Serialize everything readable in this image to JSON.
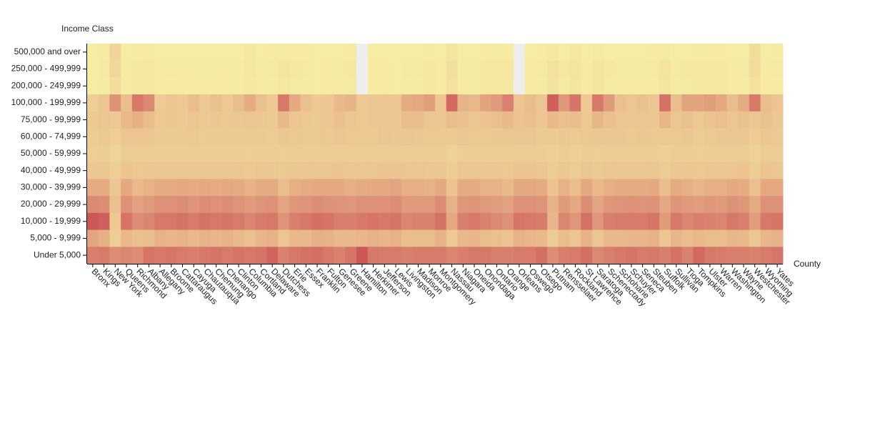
{
  "chart_data": {
    "type": "heatmap",
    "y_label": "Income Class",
    "x_label": "County",
    "x": [
      "Bronx",
      "Kings",
      "New York",
      "Queens",
      "Richmond",
      "Albany",
      "Allegany",
      "Broome",
      "Cattaraugus",
      "Cayuga",
      "Chautauqua",
      "Chemung",
      "Chenango",
      "Clinton",
      "Columbia",
      "Cortland",
      "Delaware",
      "Dutchess",
      "Erie",
      "Essex",
      "Franklin",
      "Fulton",
      "Genesee",
      "Greene",
      "Hamilton",
      "Herkimer",
      "Jefferson",
      "Lewis",
      "Livingston",
      "Madison",
      "Monroe",
      "Montgomery",
      "Nassau",
      "Niagara",
      "Oneida",
      "Onondaga",
      "Ontario",
      "Orange",
      "Orleans",
      "Oswego",
      "Otsego",
      "Putnam",
      "Rensselaer",
      "Rockland",
      "St Lawrence",
      "Saratoga",
      "Schenectady",
      "Schoharie",
      "Schuyler",
      "Seneca",
      "Steuben",
      "Suffolk",
      "Sullivan",
      "Tioga",
      "Tompkins",
      "Ulster",
      "Warren",
      "Washington",
      "Wayne",
      "Westchester",
      "Wyoming",
      "Yates"
    ],
    "y": [
      "500,000 and over",
      "250,000 - 499,999",
      "200,000 - 249,999",
      "100,000 - 199,999",
      "75,000 - 99,999",
      "60,000 - 74,999",
      "50,000 - 59,999",
      "40,000 - 49,999",
      "30,000 - 39,999",
      "20,000 - 29,999",
      "10,000 - 19,999",
      "5,000 - 9,999",
      "Under 5,000"
    ],
    "colors": [
      "#f6eda2",
      "#ecc592",
      "#cd5757"
    ],
    "color_lim": [
      0,
      13
    ],
    "missing_color": "#eeeeee",
    "values": [
      [
        0.1,
        0.3,
        4.0,
        0.2,
        0.3,
        0.4,
        0.2,
        0.2,
        0.2,
        0.2,
        0.2,
        0.2,
        0.2,
        0.2,
        0.6,
        0.2,
        0.3,
        0.5,
        0.3,
        0.3,
        0.1,
        0.2,
        0.2,
        0.3,
        null,
        0.2,
        0.2,
        0.1,
        0.2,
        0.2,
        0.4,
        0.2,
        1.3,
        0.2,
        0.2,
        0.3,
        0.4,
        0.3,
        null,
        0.1,
        0.3,
        0.7,
        0.2,
        0.6,
        0.1,
        0.5,
        0.2,
        0.2,
        0.2,
        0.2,
        0.3,
        0.5,
        0.2,
        0.2,
        0.4,
        0.3,
        0.3,
        0.1,
        0.2,
        2.4,
        0.1,
        0.3
      ],
      [
        0.2,
        0.5,
        3.8,
        0.4,
        0.8,
        0.9,
        0.3,
        0.5,
        0.3,
        0.4,
        0.4,
        0.4,
        0.3,
        0.4,
        1.0,
        0.4,
        0.5,
        1.2,
        0.6,
        0.5,
        0.2,
        0.3,
        0.4,
        0.6,
        null,
        0.3,
        0.3,
        0.2,
        0.5,
        0.5,
        0.8,
        0.3,
        2.2,
        0.4,
        0.4,
        0.7,
        0.9,
        0.9,
        null,
        0.3,
        0.5,
        1.8,
        0.6,
        1.4,
        0.3,
        1.3,
        0.6,
        0.4,
        0.4,
        0.4,
        0.5,
        1.4,
        0.5,
        0.6,
        0.8,
        0.7,
        0.7,
        0.3,
        0.5,
        2.8,
        0.3,
        0.5
      ],
      [
        0.2,
        0.4,
        2.6,
        0.4,
        0.7,
        0.7,
        0.3,
        0.4,
        0.3,
        0.3,
        0.3,
        0.3,
        0.3,
        0.4,
        0.7,
        0.3,
        0.4,
        1.0,
        0.5,
        0.4,
        0.2,
        0.3,
        0.3,
        0.5,
        null,
        0.3,
        0.3,
        0.2,
        0.4,
        0.4,
        0.6,
        0.3,
        1.9,
        0.3,
        0.4,
        0.6,
        0.7,
        0.8,
        null,
        0.3,
        0.4,
        1.6,
        0.5,
        1.3,
        0.3,
        1.1,
        0.5,
        0.3,
        0.3,
        0.3,
        0.4,
        1.2,
        0.4,
        0.5,
        0.6,
        0.6,
        0.6,
        0.3,
        0.4,
        2.0,
        0.3,
        0.4
      ],
      [
        5.0,
        6.5,
        9.5,
        7.0,
        11.0,
        10.0,
        5.5,
        6.5,
        5.8,
        7.0,
        5.8,
        6.8,
        6.0,
        7.0,
        8.0,
        6.8,
        5.8,
        11.0,
        8.2,
        6.8,
        5.8,
        6.2,
        7.2,
        7.5,
        6.0,
        6.2,
        6.5,
        6.2,
        8.0,
        8.2,
        8.8,
        6.2,
        12.0,
        7.5,
        7.2,
        8.5,
        9.0,
        10.5,
        6.5,
        7.0,
        6.5,
        12.5,
        9.2,
        11.2,
        6.0,
        11.0,
        9.0,
        6.8,
        6.5,
        6.8,
        6.5,
        11.5,
        7.0,
        8.5,
        8.5,
        8.8,
        8.2,
        7.0,
        8.0,
        11.0,
        7.0,
        6.5
      ],
      [
        5.8,
        6.5,
        6.0,
        7.2,
        7.8,
        7.0,
        6.0,
        6.2,
        5.8,
        6.5,
        5.8,
        6.2,
        6.0,
        6.2,
        6.4,
        6.2,
        5.8,
        7.2,
        6.5,
        6.0,
        5.8,
        6.2,
        6.8,
        6.5,
        6.0,
        6.2,
        6.5,
        6.2,
        7.0,
        7.0,
        6.5,
        6.2,
        7.0,
        6.8,
        6.5,
        6.6,
        6.8,
        7.2,
        6.6,
        6.8,
        6.2,
        7.2,
        6.8,
        7.0,
        6.0,
        7.4,
        6.8,
        6.5,
        6.2,
        6.5,
        6.2,
        7.4,
        6.4,
        6.8,
        6.0,
        6.6,
        6.8,
        6.5,
        6.8,
        6.2,
        6.8,
        6.2
      ],
      [
        5.5,
        6.0,
        5.0,
        6.5,
        6.5,
        6.2,
        5.8,
        5.8,
        5.8,
        6.0,
        5.6,
        5.8,
        5.8,
        5.8,
        5.8,
        5.8,
        5.6,
        6.2,
        6.0,
        5.8,
        5.8,
        6.0,
        6.5,
        6.0,
        6.0,
        6.0,
        6.4,
        6.2,
        6.4,
        6.2,
        6.0,
        6.0,
        5.8,
        6.4,
        6.0,
        6.0,
        6.2,
        6.3,
        6.4,
        6.4,
        5.8,
        5.8,
        6.2,
        5.8,
        6.0,
        6.2,
        6.2,
        6.2,
        6.0,
        6.2,
        6.0,
        6.0,
        6.0,
        6.2,
        5.6,
        6.0,
        6.2,
        6.2,
        6.4,
        5.4,
        6.5,
        6.0
      ],
      [
        5.0,
        5.2,
        4.2,
        5.5,
        5.2,
        5.2,
        5.4,
        5.2,
        5.4,
        5.4,
        5.2,
        5.2,
        5.4,
        5.2,
        5.0,
        5.2,
        5.2,
        5.0,
        5.2,
        5.2,
        5.4,
        5.4,
        5.6,
        5.2,
        5.4,
        5.4,
        5.6,
        5.6,
        5.4,
        5.4,
        5.2,
        5.4,
        4.6,
        5.4,
        5.4,
        5.2,
        5.2,
        5.2,
        5.6,
        5.6,
        5.2,
        4.8,
        5.2,
        4.8,
        5.4,
        5.0,
        5.4,
        5.4,
        5.4,
        5.4,
        5.4,
        4.8,
        5.2,
        5.4,
        5.0,
        5.2,
        5.4,
        5.4,
        5.6,
        4.6,
        5.6,
        5.4
      ],
      [
        6.2,
        6.4,
        5.0,
        6.6,
        6.0,
        6.2,
        6.4,
        6.4,
        6.4,
        6.4,
        6.4,
        6.4,
        6.4,
        6.2,
        6.0,
        6.4,
        6.2,
        5.8,
        6.2,
        6.2,
        6.4,
        6.4,
        6.6,
        6.2,
        6.4,
        6.4,
        6.6,
        6.6,
        6.4,
        6.4,
        6.2,
        6.4,
        5.4,
        6.4,
        6.4,
        6.2,
        6.2,
        6.0,
        6.6,
        6.6,
        6.2,
        5.4,
        6.2,
        5.6,
        6.4,
        5.8,
        6.4,
        6.4,
        6.4,
        6.4,
        6.4,
        5.6,
        6.2,
        6.2,
        6.0,
        6.2,
        6.2,
        6.4,
        6.6,
        5.4,
        6.6,
        6.4
      ],
      [
        8.0,
        8.0,
        6.2,
        8.2,
        7.2,
        7.6,
        8.0,
        8.0,
        8.2,
        8.0,
        8.2,
        8.0,
        8.2,
        8.0,
        7.6,
        8.0,
        8.0,
        7.0,
        7.8,
        8.0,
        8.2,
        8.2,
        8.2,
        7.8,
        8.0,
        8.2,
        8.2,
        8.4,
        7.8,
        7.8,
        7.6,
        8.2,
        6.6,
        8.0,
        8.0,
        7.6,
        7.6,
        7.2,
        8.2,
        8.2,
        8.0,
        6.6,
        7.6,
        7.0,
        8.2,
        7.2,
        7.8,
        8.0,
        8.0,
        8.0,
        8.2,
        7.0,
        8.0,
        7.8,
        7.4,
        7.8,
        7.8,
        8.2,
        8.0,
        6.8,
        8.2,
        8.2
      ],
      [
        10.0,
        9.8,
        6.8,
        9.6,
        8.6,
        9.0,
        9.6,
        9.6,
        9.8,
        9.4,
        9.8,
        9.6,
        9.8,
        9.4,
        9.0,
        9.4,
        9.6,
        8.4,
        9.2,
        9.4,
        9.8,
        9.6,
        9.4,
        9.2,
        9.6,
        9.6,
        9.6,
        9.8,
        9.0,
        9.0,
        9.0,
        9.8,
        7.6,
        9.2,
        9.4,
        9.0,
        8.8,
        8.6,
        9.6,
        9.6,
        9.4,
        7.6,
        9.0,
        8.2,
        9.8,
        8.4,
        9.2,
        9.4,
        9.6,
        9.4,
        9.6,
        8.2,
        9.4,
        9.0,
        8.8,
        9.2,
        9.0,
        9.6,
        9.2,
        8.0,
        9.6,
        9.6
      ],
      [
        13.0,
        12.5,
        6.0,
        11.2,
        9.8,
        10.2,
        11.0,
        11.0,
        11.4,
        10.8,
        11.4,
        11.0,
        11.2,
        10.8,
        10.2,
        10.8,
        11.0,
        9.4,
        10.6,
        11.0,
        11.6,
        11.2,
        10.6,
        10.6,
        11.0,
        11.2,
        11.0,
        11.2,
        10.2,
        10.4,
        10.4,
        11.4,
        8.2,
        10.6,
        11.0,
        10.4,
        10.0,
        9.6,
        11.2,
        11.0,
        10.8,
        7.4,
        10.2,
        9.2,
        11.4,
        9.2,
        10.6,
        10.8,
        10.8,
        10.8,
        11.2,
        9.0,
        11.0,
        10.2,
        10.6,
        10.4,
        10.2,
        11.0,
        10.6,
        8.8,
        11.0,
        11.2
      ],
      [
        8.4,
        7.8,
        5.0,
        7.2,
        6.8,
        7.0,
        7.6,
        7.4,
        7.6,
        7.2,
        7.6,
        7.4,
        7.6,
        7.2,
        6.8,
        7.4,
        7.6,
        6.4,
        7.2,
        7.2,
        7.8,
        7.6,
        7.2,
        7.2,
        7.4,
        7.6,
        7.4,
        7.6,
        7.0,
        7.0,
        7.0,
        7.6,
        5.8,
        7.2,
        7.4,
        7.0,
        6.8,
        6.6,
        7.6,
        7.4,
        7.2,
        5.6,
        7.0,
        6.4,
        7.6,
        6.4,
        7.2,
        7.2,
        7.4,
        7.4,
        7.6,
        6.2,
        7.4,
        7.0,
        7.2,
        7.0,
        7.0,
        7.4,
        7.2,
        6.2,
        7.4,
        7.6
      ],
      [
        10.6,
        10.8,
        9.8,
        10.2,
        9.8,
        11.2,
        11.0,
        11.2,
        10.8,
        10.6,
        11.0,
        11.2,
        10.8,
        11.2,
        11.0,
        11.2,
        12.2,
        10.4,
        11.0,
        11.4,
        11.6,
        11.0,
        10.4,
        11.2,
        13.0,
        11.0,
        10.8,
        10.8,
        10.6,
        10.8,
        10.8,
        10.8,
        10.2,
        10.6,
        11.0,
        11.0,
        10.6,
        10.6,
        10.8,
        10.8,
        11.6,
        9.8,
        10.6,
        10.8,
        11.6,
        10.0,
        10.6,
        11.0,
        11.2,
        10.8,
        11.0,
        10.6,
        11.4,
        10.4,
        12.0,
        11.0,
        10.8,
        10.6,
        10.6,
        10.4,
        10.8,
        11.2
      ]
    ]
  }
}
